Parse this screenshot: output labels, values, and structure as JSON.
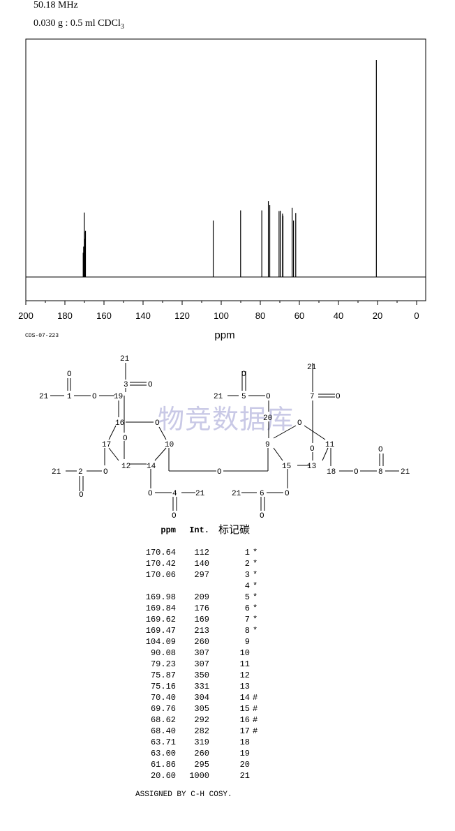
{
  "header": {
    "frequency": "50.18 MHz",
    "sample_prefix": "0.030 g : 0.5 ml CDCl",
    "sample_subscript": "3"
  },
  "code": "CDS-07-223",
  "watermark": "物竞数据库",
  "chart_data": {
    "type": "line",
    "xlabel": "ppm",
    "xlim": [
      200,
      0
    ],
    "x_ticks": [
      "200",
      "180",
      "160",
      "140",
      "120",
      "100",
      "80",
      "60",
      "40",
      "20",
      "0"
    ],
    "x_tick_values": [
      200,
      180,
      160,
      140,
      120,
      100,
      80,
      60,
      40,
      20,
      0
    ],
    "ylim": [
      0,
      1000
    ],
    "peaks": [
      {
        "ppm": 170.64,
        "int": 112
      },
      {
        "ppm": 170.42,
        "int": 140
      },
      {
        "ppm": 170.06,
        "int": 297
      },
      {
        "ppm": 169.98,
        "int": 209
      },
      {
        "ppm": 169.84,
        "int": 176
      },
      {
        "ppm": 169.62,
        "int": 169
      },
      {
        "ppm": 169.47,
        "int": 213
      },
      {
        "ppm": 104.09,
        "int": 260
      },
      {
        "ppm": 90.08,
        "int": 307
      },
      {
        "ppm": 79.23,
        "int": 307
      },
      {
        "ppm": 75.87,
        "int": 350
      },
      {
        "ppm": 75.16,
        "int": 331
      },
      {
        "ppm": 70.4,
        "int": 304
      },
      {
        "ppm": 69.76,
        "int": 305
      },
      {
        "ppm": 68.62,
        "int": 292
      },
      {
        "ppm": 68.4,
        "int": 282
      },
      {
        "ppm": 63.71,
        "int": 319
      },
      {
        "ppm": 63.0,
        "int": 260
      },
      {
        "ppm": 61.86,
        "int": 295
      },
      {
        "ppm": 20.6,
        "int": 1000
      }
    ]
  },
  "table": {
    "headers": {
      "ppm": "ppm",
      "int": "Int.",
      "carbon": "标记碳"
    },
    "rows": [
      {
        "ppm": "170.64",
        "int": "112",
        "carbon": "1",
        "mark": "*"
      },
      {
        "ppm": "170.42",
        "int": "140",
        "carbon": "2",
        "mark": "*"
      },
      {
        "ppm": "170.06",
        "int": "297",
        "carbon": "3",
        "mark": "*"
      },
      {
        "ppm": "",
        "int": "",
        "carbon": "4",
        "mark": "*"
      },
      {
        "ppm": "169.98",
        "int": "209",
        "carbon": "5",
        "mark": "*"
      },
      {
        "ppm": "169.84",
        "int": "176",
        "carbon": "6",
        "mark": "*"
      },
      {
        "ppm": "169.62",
        "int": "169",
        "carbon": "7",
        "mark": "*"
      },
      {
        "ppm": "169.47",
        "int": "213",
        "carbon": "8",
        "mark": "*"
      },
      {
        "ppm": "104.09",
        "int": "260",
        "carbon": "9",
        "mark": ""
      },
      {
        "ppm": "90.08",
        "int": "307",
        "carbon": "10",
        "mark": ""
      },
      {
        "ppm": "79.23",
        "int": "307",
        "carbon": "11",
        "mark": ""
      },
      {
        "ppm": "75.87",
        "int": "350",
        "carbon": "12",
        "mark": ""
      },
      {
        "ppm": "75.16",
        "int": "331",
        "carbon": "13",
        "mark": ""
      },
      {
        "ppm": "70.40",
        "int": "304",
        "carbon": "14",
        "mark": "#"
      },
      {
        "ppm": "69.76",
        "int": "305",
        "carbon": "15",
        "mark": "#"
      },
      {
        "ppm": "68.62",
        "int": "292",
        "carbon": "16",
        "mark": "#"
      },
      {
        "ppm": "68.40",
        "int": "282",
        "carbon": "17",
        "mark": "#"
      },
      {
        "ppm": "63.71",
        "int": "319",
        "carbon": "18",
        "mark": ""
      },
      {
        "ppm": "63.00",
        "int": "260",
        "carbon": "19",
        "mark": ""
      },
      {
        "ppm": "61.86",
        "int": "295",
        "carbon": "20",
        "mark": ""
      },
      {
        "ppm": "20.60",
        "int": "1000",
        "carbon": "21",
        "mark": ""
      }
    ]
  },
  "assigned_note": "ASSIGNED BY C-H COSY.",
  "structure": {
    "atoms": {
      "n21a": "21",
      "n21b": "21",
      "n21c": "21",
      "n21d": "21",
      "n21e": "21",
      "n21f": "21",
      "n21g": "21",
      "n21h": "21",
      "n1": "1",
      "n2": "2",
      "n3": "3",
      "n4": "4",
      "n5": "5",
      "n6": "6",
      "n7": "7",
      "n8": "8",
      "n9": "9",
      "n10": "10",
      "n11": "11",
      "n12": "12",
      "n13": "13",
      "n14": "14",
      "n15": "15",
      "n16": "16",
      "n17": "17",
      "n18": "18",
      "n19": "19",
      "n20": "20",
      "o": "O"
    }
  }
}
